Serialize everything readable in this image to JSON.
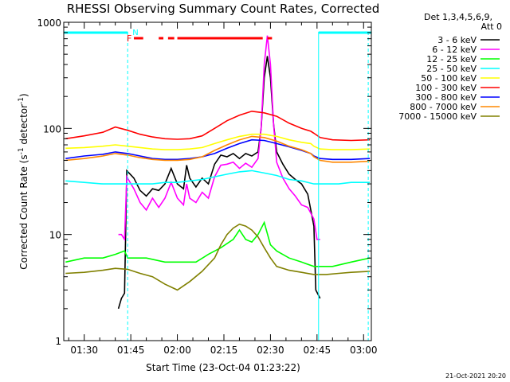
{
  "chart_data": {
    "type": "line",
    "title": "RHESSI Observing Summary Count Rates, Corrected",
    "xlabel": "Start Time (23-Oct-04 01:23:22)",
    "ylabel": "Corrected Count Rate (s⁻¹ detector⁻¹)",
    "ylabel_main": "Corrected Count Rate (s",
    "ylabel_sup1": "-1",
    "ylabel_mid": " detector",
    "ylabel_sup2": "-1",
    "ylabel_end": ")",
    "yscale": "log",
    "ylim": [
      1,
      1000
    ],
    "xlim_minutes": [
      83.4,
      182.5
    ],
    "x_ticks": [
      {
        "m": 90,
        "label": "01:30"
      },
      {
        "m": 105,
        "label": "01:45"
      },
      {
        "m": 120,
        "label": "02:00"
      },
      {
        "m": 135,
        "label": "02:15"
      },
      {
        "m": 150,
        "label": "02:30"
      },
      {
        "m": 165,
        "label": "02:45"
      },
      {
        "m": 180,
        "label": "03:00"
      }
    ],
    "y_ticks": [
      {
        "v": 1,
        "label": "1"
      },
      {
        "v": 10,
        "label": "10"
      },
      {
        "v": 100,
        "label": "100"
      },
      {
        "v": 1000,
        "label": "1000"
      }
    ],
    "legend_header": [
      "Det 1,3,4,5,6,9,",
      "Att 0"
    ],
    "series": [
      {
        "name": "3 - 6 keV",
        "color": "#000000",
        "points": [
          [
            101,
            2
          ],
          [
            102,
            2.5
          ],
          [
            103,
            2.8
          ],
          [
            103.7,
            40
          ],
          [
            106,
            34
          ],
          [
            108,
            26
          ],
          [
            110,
            23
          ],
          [
            112,
            27
          ],
          [
            114,
            26
          ],
          [
            116,
            30
          ],
          [
            118,
            42
          ],
          [
            120,
            30
          ],
          [
            122,
            27
          ],
          [
            123,
            45
          ],
          [
            124,
            34
          ],
          [
            126,
            28
          ],
          [
            128,
            34
          ],
          [
            130,
            30
          ],
          [
            132,
            46
          ],
          [
            134,
            56
          ],
          [
            136,
            54
          ],
          [
            138,
            58
          ],
          [
            140,
            52
          ],
          [
            142,
            58
          ],
          [
            144,
            55
          ],
          [
            146,
            60
          ],
          [
            147,
            100
          ],
          [
            148,
            300
          ],
          [
            149,
            480
          ],
          [
            150,
            300
          ],
          [
            151,
            110
          ],
          [
            152,
            60
          ],
          [
            154,
            46
          ],
          [
            156,
            37
          ],
          [
            158,
            33
          ],
          [
            160,
            30
          ],
          [
            162,
            24
          ],
          [
            164,
            12
          ],
          [
            164.6,
            3
          ],
          [
            166,
            2.5
          ]
        ]
      },
      {
        "name": "6 - 12 keV",
        "color": "#ff00ff",
        "points": [
          [
            101,
            10
          ],
          [
            102,
            10
          ],
          [
            103,
            9
          ],
          [
            103.7,
            35
          ],
          [
            106,
            27
          ],
          [
            108,
            20
          ],
          [
            110,
            17
          ],
          [
            112,
            22
          ],
          [
            114,
            18
          ],
          [
            116,
            22
          ],
          [
            118,
            31
          ],
          [
            120,
            22
          ],
          [
            122,
            19
          ],
          [
            123,
            30
          ],
          [
            124,
            22
          ],
          [
            126,
            20
          ],
          [
            128,
            25
          ],
          [
            130,
            22
          ],
          [
            132,
            35
          ],
          [
            134,
            45
          ],
          [
            136,
            46
          ],
          [
            138,
            48
          ],
          [
            140,
            42
          ],
          [
            142,
            47
          ],
          [
            144,
            43
          ],
          [
            146,
            52
          ],
          [
            147,
            100
          ],
          [
            148,
            400
          ],
          [
            149,
            750
          ],
          [
            150,
            400
          ],
          [
            151,
            110
          ],
          [
            152,
            48
          ],
          [
            154,
            34
          ],
          [
            156,
            27
          ],
          [
            158,
            23
          ],
          [
            160,
            19
          ],
          [
            162,
            18
          ],
          [
            164,
            14
          ],
          [
            165,
            9
          ],
          [
            166,
            9
          ]
        ]
      },
      {
        "name": "12 - 25 keV",
        "color": "#00ff00",
        "points": [
          [
            84,
            5.5
          ],
          [
            90,
            6
          ],
          [
            96,
            6
          ],
          [
            100,
            6.5
          ],
          [
            103,
            7
          ],
          [
            104,
            6
          ],
          [
            110,
            6
          ],
          [
            116,
            5.5
          ],
          [
            120,
            5.5
          ],
          [
            126,
            5.5
          ],
          [
            130,
            6.5
          ],
          [
            134,
            7.5
          ],
          [
            138,
            9
          ],
          [
            140,
            11
          ],
          [
            142,
            9
          ],
          [
            144,
            8.5
          ],
          [
            146,
            10
          ],
          [
            148,
            13
          ],
          [
            150,
            8
          ],
          [
            152,
            7
          ],
          [
            156,
            6
          ],
          [
            160,
            5.5
          ],
          [
            164,
            5
          ],
          [
            170,
            5
          ],
          [
            176,
            5.5
          ],
          [
            182,
            6
          ]
        ]
      },
      {
        "name": "25 - 50 keV",
        "color": "#00ffff",
        "points": [
          [
            84,
            32
          ],
          [
            90,
            31
          ],
          [
            96,
            30
          ],
          [
            100,
            30
          ],
          [
            104,
            30
          ],
          [
            108,
            30
          ],
          [
            112,
            30
          ],
          [
            116,
            31
          ],
          [
            120,
            31
          ],
          [
            124,
            32
          ],
          [
            128,
            33
          ],
          [
            132,
            35
          ],
          [
            136,
            37
          ],
          [
            140,
            39
          ],
          [
            144,
            40
          ],
          [
            148,
            38
          ],
          [
            152,
            36
          ],
          [
            156,
            33
          ],
          [
            160,
            32
          ],
          [
            164,
            30
          ],
          [
            168,
            30
          ],
          [
            172,
            30
          ],
          [
            176,
            31
          ],
          [
            182,
            31
          ]
        ]
      },
      {
        "name": "50 - 100 keV",
        "color": "#ffff00",
        "points": [
          [
            84,
            65
          ],
          [
            90,
            66
          ],
          [
            96,
            68
          ],
          [
            100,
            70
          ],
          [
            104,
            68
          ],
          [
            108,
            66
          ],
          [
            112,
            64
          ],
          [
            116,
            63
          ],
          [
            120,
            63
          ],
          [
            124,
            64
          ],
          [
            128,
            66
          ],
          [
            132,
            72
          ],
          [
            136,
            78
          ],
          [
            140,
            84
          ],
          [
            144,
            88
          ],
          [
            148,
            88
          ],
          [
            152,
            84
          ],
          [
            156,
            78
          ],
          [
            160,
            74
          ],
          [
            163,
            72
          ],
          [
            164,
            68
          ],
          [
            166,
            64
          ],
          [
            170,
            63
          ],
          [
            176,
            63
          ],
          [
            182,
            64
          ]
        ]
      },
      {
        "name": "100 - 300 keV",
        "color": "#ff0000",
        "points": [
          [
            84,
            80
          ],
          [
            90,
            85
          ],
          [
            96,
            92
          ],
          [
            100,
            103
          ],
          [
            104,
            96
          ],
          [
            108,
            88
          ],
          [
            112,
            83
          ],
          [
            116,
            80
          ],
          [
            120,
            79
          ],
          [
            124,
            80
          ],
          [
            128,
            85
          ],
          [
            132,
            100
          ],
          [
            136,
            118
          ],
          [
            140,
            133
          ],
          [
            144,
            145
          ],
          [
            148,
            140
          ],
          [
            152,
            130
          ],
          [
            156,
            112
          ],
          [
            160,
            100
          ],
          [
            163,
            94
          ],
          [
            164,
            90
          ],
          [
            166,
            82
          ],
          [
            170,
            78
          ],
          [
            176,
            77
          ],
          [
            182,
            78
          ]
        ]
      },
      {
        "name": "300 - 800 keV",
        "color": "#0000ff",
        "points": [
          [
            84,
            52
          ],
          [
            90,
            55
          ],
          [
            96,
            57
          ],
          [
            100,
            60
          ],
          [
            104,
            58
          ],
          [
            108,
            55
          ],
          [
            112,
            52
          ],
          [
            116,
            51
          ],
          [
            120,
            51
          ],
          [
            124,
            52
          ],
          [
            128,
            54
          ],
          [
            132,
            58
          ],
          [
            136,
            65
          ],
          [
            140,
            72
          ],
          [
            144,
            78
          ],
          [
            148,
            77
          ],
          [
            152,
            72
          ],
          [
            156,
            67
          ],
          [
            160,
            62
          ],
          [
            163,
            58
          ],
          [
            164,
            55
          ],
          [
            166,
            52
          ],
          [
            170,
            51
          ],
          [
            176,
            51
          ],
          [
            182,
            52
          ]
        ]
      },
      {
        "name": "800 - 7000 keV",
        "color": "#ff8800",
        "points": [
          [
            84,
            50
          ],
          [
            90,
            52
          ],
          [
            96,
            55
          ],
          [
            100,
            58
          ],
          [
            104,
            56
          ],
          [
            108,
            53
          ],
          [
            112,
            51
          ],
          [
            116,
            50
          ],
          [
            120,
            50
          ],
          [
            124,
            51
          ],
          [
            128,
            54
          ],
          [
            132,
            62
          ],
          [
            136,
            70
          ],
          [
            140,
            78
          ],
          [
            144,
            84
          ],
          [
            148,
            82
          ],
          [
            152,
            76
          ],
          [
            156,
            68
          ],
          [
            160,
            63
          ],
          [
            163,
            58
          ],
          [
            164,
            54
          ],
          [
            166,
            50
          ],
          [
            170,
            48
          ],
          [
            176,
            48
          ],
          [
            182,
            49
          ]
        ]
      },
      {
        "name": "7000 - 15000 keV",
        "color": "#808000",
        "points": [
          [
            84,
            4.3
          ],
          [
            90,
            4.4
          ],
          [
            96,
            4.6
          ],
          [
            100,
            4.8
          ],
          [
            104,
            4.7
          ],
          [
            108,
            4.3
          ],
          [
            112,
            4
          ],
          [
            116,
            3.4
          ],
          [
            120,
            3
          ],
          [
            124,
            3.6
          ],
          [
            128,
            4.5
          ],
          [
            132,
            6
          ],
          [
            134,
            8
          ],
          [
            136,
            10
          ],
          [
            138,
            11.5
          ],
          [
            140,
            12.5
          ],
          [
            142,
            12
          ],
          [
            144,
            11
          ],
          [
            146,
            9.5
          ],
          [
            148,
            7.5
          ],
          [
            150,
            6
          ],
          [
            152,
            5
          ],
          [
            156,
            4.6
          ],
          [
            160,
            4.4
          ],
          [
            164,
            4.2
          ],
          [
            168,
            4.2
          ],
          [
            172,
            4.3
          ],
          [
            176,
            4.4
          ],
          [
            182,
            4.5
          ]
        ]
      }
    ],
    "flag_f_label": "F",
    "flag_n_label": "N",
    "flag_f_segments": [
      [
        106,
        109
      ],
      [
        114,
        115.5
      ],
      [
        117,
        119
      ],
      [
        120,
        147.5
      ],
      [
        149,
        150.5
      ]
    ],
    "flag_n_segments": [
      [
        83.4,
        104
      ],
      [
        165.5,
        182.5
      ]
    ],
    "flag_n_color": "#00ffff",
    "flag_f_color": "#ff0000",
    "night_boundaries_minutes": [
      104,
      165.5,
      181.5
    ],
    "date_stamp": "21-Oct-2021 20:20"
  }
}
